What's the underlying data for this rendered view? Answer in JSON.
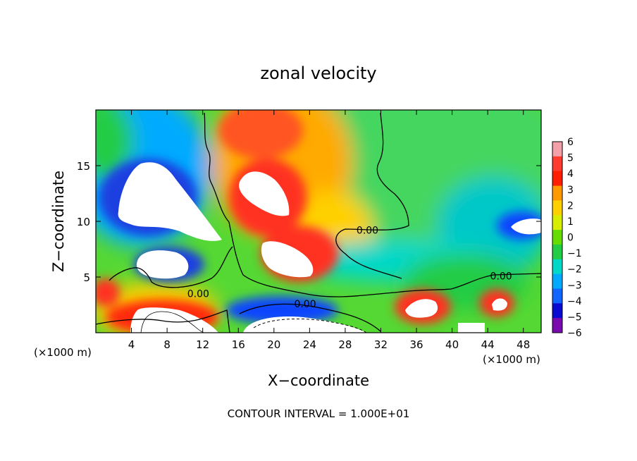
{
  "chart_data": {
    "type": "heatmap",
    "title": "zonal velocity",
    "xlabel": "X−coordinate",
    "ylabel": "Z−coordinate",
    "x_unit_left": "(×1000 m)",
    "x_unit_right": "(×1000 m)",
    "xlim": [
      0,
      50
    ],
    "ylim": [
      0,
      20
    ],
    "x_ticks": [
      4,
      8,
      12,
      16,
      20,
      24,
      28,
      32,
      36,
      40,
      44,
      48
    ],
    "x_tick_labels": [
      "4",
      "8",
      "12",
      "16",
      "20",
      "24",
      "28",
      "32",
      "36",
      "40",
      "44",
      "48"
    ],
    "y_ticks": [
      5,
      10,
      15
    ],
    "y_tick_labels": [
      "5",
      "10",
      "15"
    ],
    "colorbar": {
      "levels": [
        6,
        5,
        4,
        3,
        2,
        1,
        0,
        -1,
        -2,
        -3,
        -4,
        -5,
        -6
      ],
      "labels": [
        "6",
        "5",
        "4",
        "3",
        "2",
        "1",
        "0",
        "−1",
        "−2",
        "−3",
        "−4",
        "−5",
        "−6"
      ],
      "colors": [
        "#f3a0a8",
        "#ff3b30",
        "#ff1e00",
        "#ff9900",
        "#ffd000",
        "#d8ee00",
        "#66dd00",
        "#22cc44",
        "#00d8c8",
        "#00aaff",
        "#1166ff",
        "#0a0ad0",
        "#7a0ab0"
      ]
    },
    "contour_labels": [
      {
        "text": "0.00",
        "x": 11.5,
        "y": 3.5
      },
      {
        "text": "0.00",
        "x": 23.5,
        "y": 2.6
      },
      {
        "text": "0.00",
        "x": 30.5,
        "y": 9.2
      },
      {
        "text": "0.00",
        "x": 45.5,
        "y": 5.1
      }
    ],
    "footer": "CONTOUR INTERVAL = 1.000E+01"
  }
}
